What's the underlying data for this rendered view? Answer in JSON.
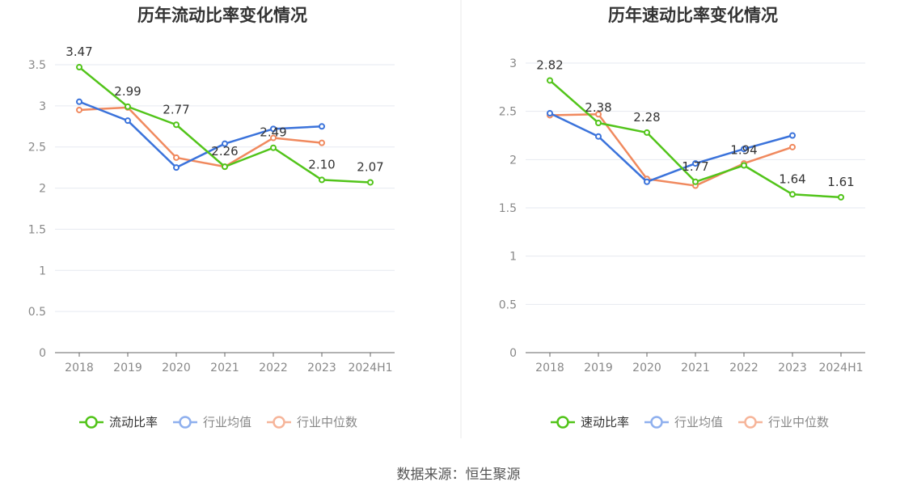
{
  "source": "数据来源：恒生聚源",
  "chart_data": [
    {
      "type": "line",
      "title": "历年流动比率变化情况",
      "categories": [
        "2018",
        "2019",
        "2020",
        "2021",
        "2022",
        "2023",
        "2024H1"
      ],
      "ylim": [
        0,
        3.5
      ],
      "yticks": [
        0,
        0.5,
        1,
        1.5,
        2,
        2.5,
        3,
        3.5
      ],
      "ytick_labels": [
        "0",
        "0.5",
        "1",
        "1.5",
        "2",
        "2.5",
        "3",
        "3.5"
      ],
      "grid": true,
      "legend_position": "bottom",
      "series": [
        {
          "name": "流动比率",
          "color": "#52c41a",
          "values": [
            3.47,
            2.99,
            2.77,
            2.26,
            2.49,
            2.1,
            2.07
          ],
          "labels": [
            "3.47",
            "2.99",
            "2.77",
            "2.26",
            "2.49",
            "2.10",
            "2.07"
          ]
        },
        {
          "name": "行业均值",
          "color": "#3b73db",
          "values": [
            3.05,
            2.82,
            2.25,
            2.54,
            2.72,
            2.75,
            null
          ]
        },
        {
          "name": "行业中位数",
          "color": "#f0895e",
          "values": [
            2.95,
            2.98,
            2.37,
            2.26,
            2.61,
            2.55,
            null
          ]
        }
      ]
    },
    {
      "type": "line",
      "title": "历年速动比率变化情况",
      "categories": [
        "2018",
        "2019",
        "2020",
        "2021",
        "2022",
        "2023",
        "2024H1"
      ],
      "ylim": [
        0,
        3
      ],
      "yticks": [
        0,
        0.5,
        1,
        1.5,
        2,
        2.5,
        3
      ],
      "ytick_labels": [
        "0",
        "0.5",
        "1",
        "1.5",
        "2",
        "2.5",
        "3"
      ],
      "grid": true,
      "legend_position": "bottom",
      "series": [
        {
          "name": "速动比率",
          "color": "#52c41a",
          "values": [
            2.82,
            2.38,
            2.28,
            1.77,
            1.94,
            1.64,
            1.61
          ],
          "labels": [
            "2.82",
            "2.38",
            "2.28",
            "1.77",
            "1.94",
            "1.64",
            "1.61"
          ]
        },
        {
          "name": "行业均值",
          "color": "#3b73db",
          "values": [
            2.48,
            2.24,
            1.77,
            1.96,
            2.11,
            2.25,
            null
          ]
        },
        {
          "name": "行业中位数",
          "color": "#f0895e",
          "values": [
            2.46,
            2.47,
            1.8,
            1.73,
            1.96,
            2.13,
            null
          ]
        }
      ]
    }
  ]
}
